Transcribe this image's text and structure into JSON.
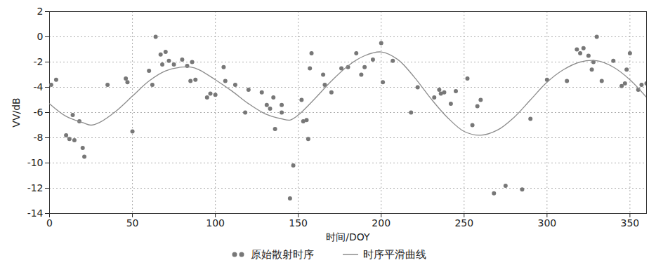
{
  "chart_data": {
    "type": "line",
    "x_label": "时间/DOY",
    "y_label": "VV/dB",
    "xlim": [
      0,
      360
    ],
    "xticks": [
      0,
      50,
      100,
      150,
      200,
      250,
      300,
      350
    ],
    "ylim": [
      -14,
      2
    ],
    "yticks": [
      -14,
      -12,
      -10,
      -8,
      -6,
      -4,
      -2,
      0,
      2
    ],
    "grid": true,
    "legend": "bottom",
    "series": [
      {
        "name": "原始散射时序",
        "type": "scatter",
        "marker": "circle",
        "color": "#777777",
        "x": [
          1,
          4,
          10,
          12,
          14,
          15,
          18,
          20,
          21,
          35,
          46,
          47,
          50,
          60,
          62,
          64,
          67,
          68,
          70,
          72,
          75,
          80,
          83,
          85,
          86,
          88,
          95,
          97,
          100,
          105,
          106,
          112,
          118,
          120,
          128,
          131,
          133,
          135,
          136,
          140,
          140,
          145,
          147,
          152,
          153,
          155,
          156,
          157,
          158,
          165,
          166,
          170,
          176,
          180,
          185,
          188,
          190,
          195,
          200,
          201,
          207,
          218,
          222,
          232,
          235,
          236,
          238,
          242,
          245,
          252,
          255,
          258,
          260,
          268,
          275,
          285,
          290,
          300,
          312,
          318,
          320,
          322,
          325,
          327,
          328,
          330,
          333,
          340,
          345,
          347,
          348,
          350,
          355,
          357,
          360
        ],
        "values": [
          -3.8,
          -3.4,
          -7.8,
          -8.1,
          -6.2,
          -8.2,
          -6.7,
          -8.8,
          -9.5,
          -3.8,
          -3.3,
          -3.6,
          -7.5,
          -2.7,
          -3.8,
          0,
          -1.4,
          -2.2,
          -1.2,
          -1.9,
          -2.2,
          -1.8,
          -2.3,
          -3.5,
          -2.0,
          -3.4,
          -4.8,
          -4.5,
          -4.6,
          -2.4,
          -3.5,
          -3.8,
          -6.0,
          -4.2,
          -4.4,
          -5.4,
          -5.7,
          -4.8,
          -7.3,
          -5.4,
          -6.0,
          -12.8,
          -10.2,
          -5.0,
          -6.7,
          -6.6,
          -8.1,
          -2.5,
          -1.3,
          -3.0,
          -3.8,
          -4.4,
          -2.5,
          -2.4,
          -1.3,
          -3.0,
          -2.4,
          -1.8,
          -0.5,
          -3.6,
          -1.9,
          -6.0,
          -4.0,
          -4.8,
          -4.2,
          -4.5,
          -4.4,
          -5.3,
          -4.3,
          -3.3,
          -7.0,
          -5.5,
          -5.0,
          -12.4,
          -11.8,
          -12.1,
          -6.5,
          -3.4,
          -3.5,
          -1.0,
          -1.3,
          -0.9,
          -1.5,
          -2.6,
          -2.0,
          0,
          -3.5,
          -1.9,
          -3.9,
          -3.7,
          -2.6,
          -1.3,
          -4.2,
          -3.8,
          -3.7
        ]
      },
      {
        "name": "时序平滑曲线",
        "type": "line",
        "line_style": "solid",
        "color": "#8c8c8c",
        "x": [
          0,
          10,
          20,
          25,
          30,
          40,
          50,
          60,
          70,
          80,
          85,
          90,
          100,
          110,
          120,
          130,
          140,
          145,
          150,
          160,
          170,
          180,
          190,
          200,
          210,
          220,
          230,
          240,
          250,
          260,
          270,
          280,
          290,
          300,
          310,
          320,
          330,
          340,
          350,
          360
        ],
        "values": [
          -5.3,
          -6.3,
          -6.8,
          -7.0,
          -6.8,
          -5.9,
          -4.7,
          -3.5,
          -2.7,
          -2.4,
          -2.4,
          -2.6,
          -3.4,
          -4.3,
          -5.3,
          -6.1,
          -6.5,
          -6.6,
          -6.2,
          -4.9,
          -3.5,
          -2.3,
          -1.5,
          -1.2,
          -1.8,
          -3.2,
          -4.9,
          -6.4,
          -7.5,
          -7.8,
          -7.4,
          -6.4,
          -5.0,
          -3.6,
          -2.6,
          -2.0,
          -1.9,
          -2.4,
          -3.4,
          -4.8
        ]
      }
    ]
  }
}
